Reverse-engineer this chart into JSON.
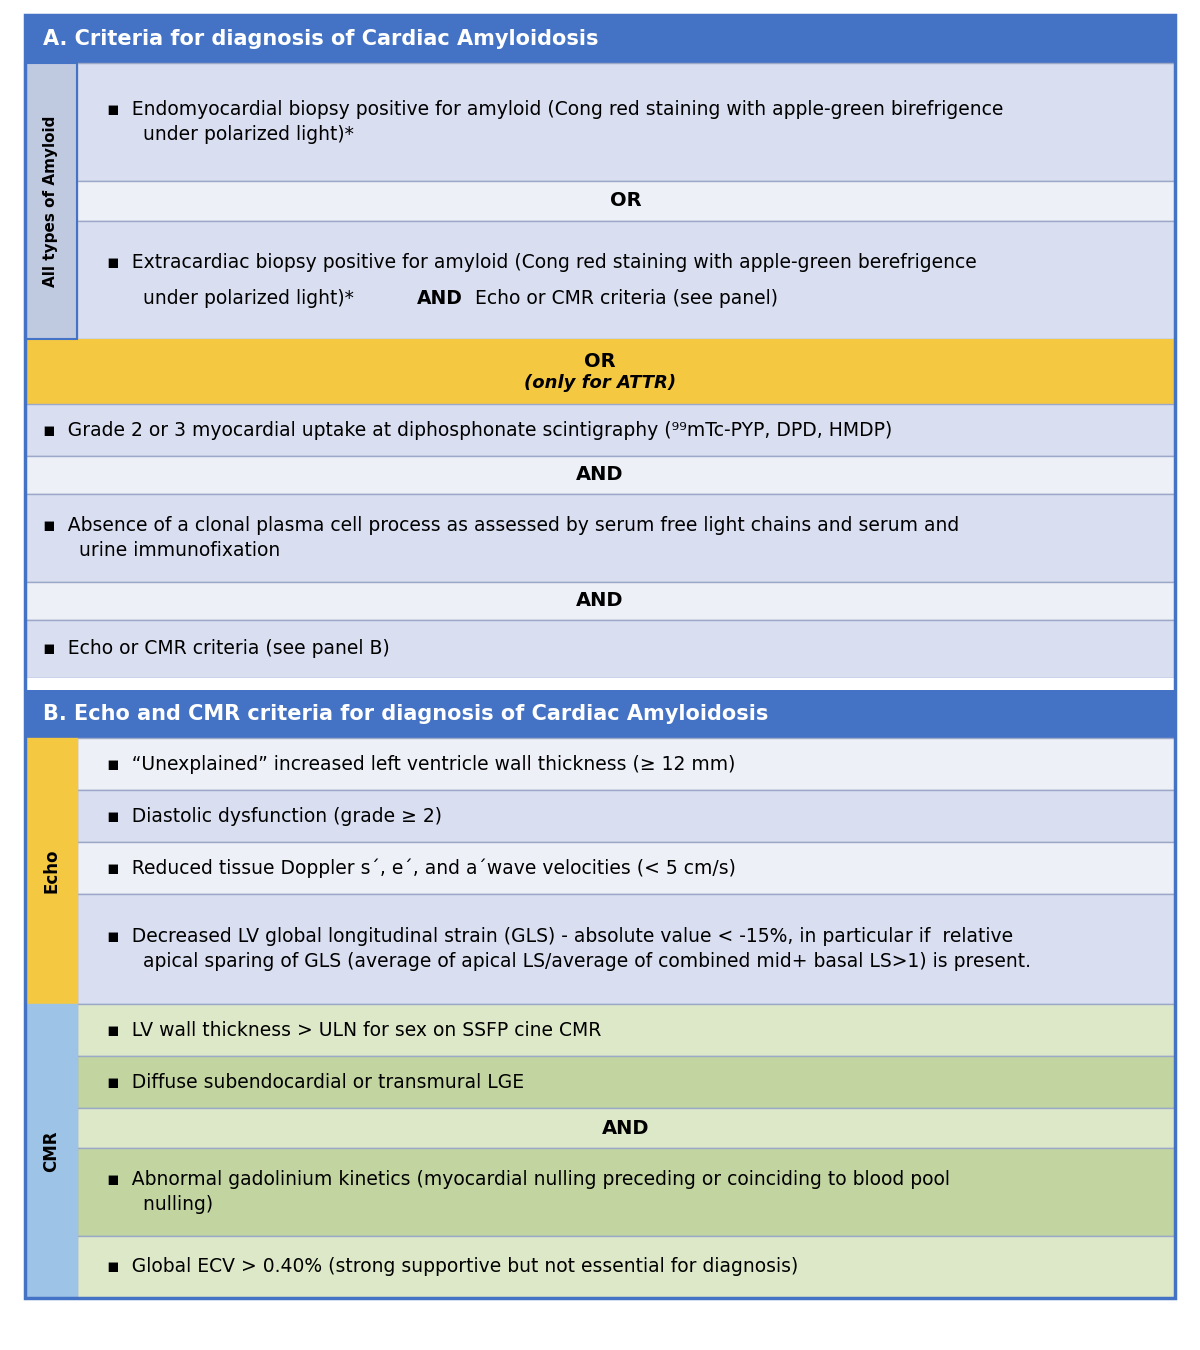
{
  "fig_width": 12.0,
  "fig_height": 13.5,
  "bg_color": "#ffffff",
  "header_A_color": "#4472C4",
  "header_A_text": "A. Criteria for diagnosis of Cardiac Amyloidosis",
  "header_B_color": "#4472C4",
  "header_B_text": "B. Echo and CMR criteria for diagnosis of Cardiac Amyloidosis",
  "light_blue_bg": "#BFC9E0",
  "lighter_blue_bg": "#D9DEF0",
  "gold_bg": "#F5C842",
  "light_green_bg": "#C2D4A0",
  "lighter_green_bg": "#DDE8C8",
  "white_row": "#EEF0F8",
  "side_label_all": "All types of Amyloid",
  "side_label_echo": "Echo",
  "side_label_cmr": "CMR",
  "outer_border_color": "#4472C4",
  "row_edge_color": "#9BA8C8"
}
